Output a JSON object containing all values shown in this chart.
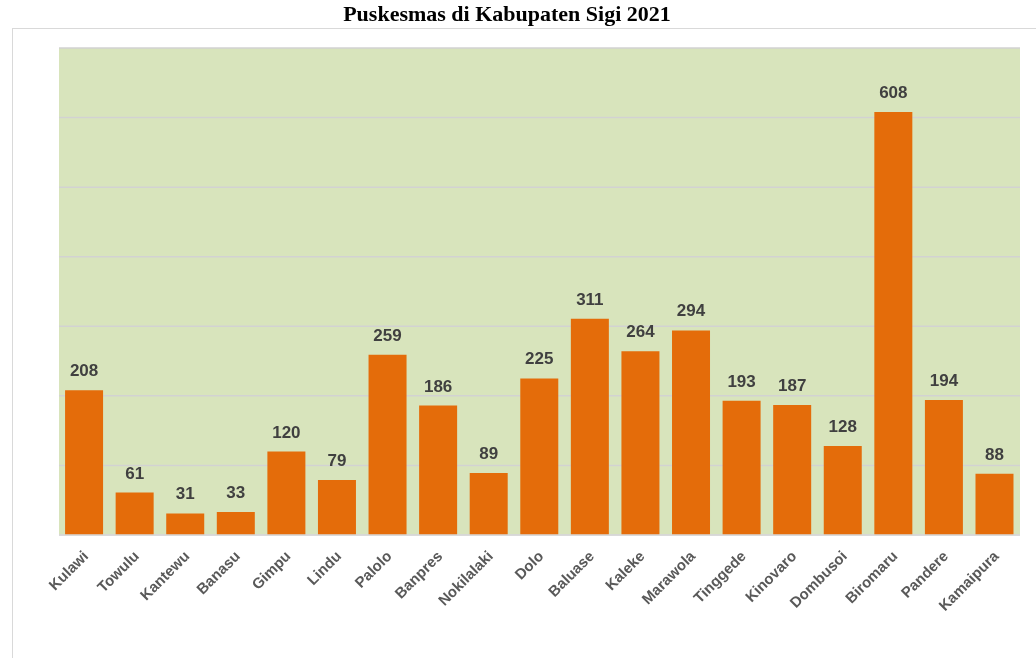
{
  "chart_data": {
    "type": "bar",
    "title": "Puskesmas di Kabupaten Sigi 2021",
    "categories": [
      "Kulawi",
      "Towulu",
      "Kantewu",
      "Banasu",
      "Gimpu",
      "Lindu",
      "Palolo",
      "Banpres",
      "Nokilalaki",
      "Dolo",
      "Baluase",
      "Kaleke",
      "Marawola",
      "Tinggede",
      "Kinovaro",
      "Dombusoi",
      "Biromaru",
      "Pandere",
      "Kamaipura"
    ],
    "values": [
      208,
      61,
      31,
      33,
      120,
      79,
      259,
      186,
      89,
      225,
      311,
      264,
      294,
      193,
      187,
      128,
      608,
      194,
      88
    ],
    "color": "#e46c0a",
    "ylim": [
      0,
      700
    ],
    "yticks": [
      {
        "value": 0,
        "label": null
      },
      {
        "value": 100,
        "label": null
      },
      {
        "value": 200,
        "label": null
      },
      {
        "value": 300,
        "label": null
      },
      {
        "value": 400,
        "label": null
      },
      {
        "value": 500,
        "label": null
      },
      {
        "value": 600,
        "label": null
      },
      {
        "value": 700,
        "label": null
      }
    ],
    "grid": "y",
    "tick_labels": "x",
    "data_labels": true
  }
}
